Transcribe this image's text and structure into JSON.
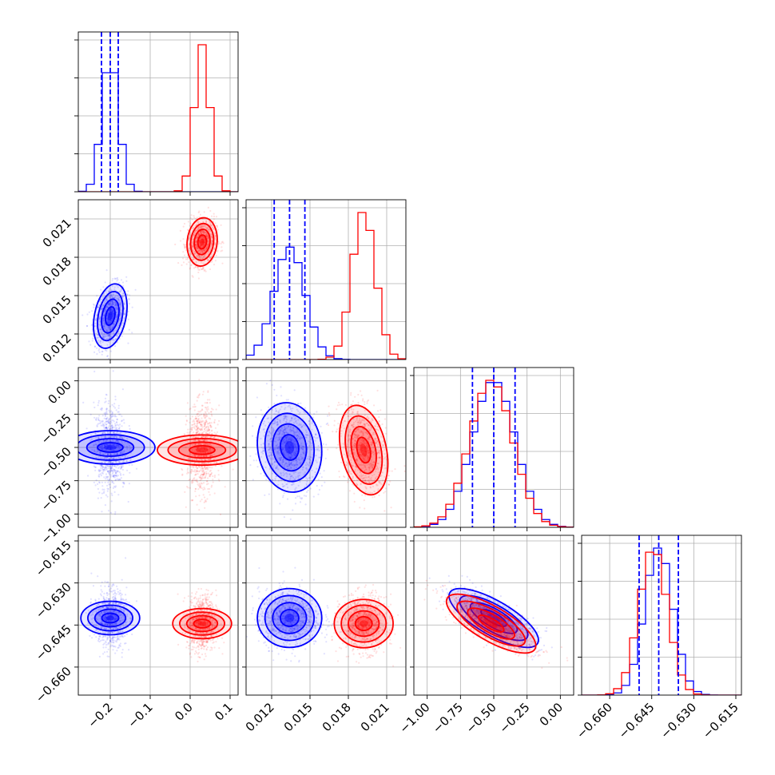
{
  "chart_data": {
    "type": "corner",
    "parameters": 4,
    "grid": true,
    "axis_ranges": [
      [
        -0.28,
        0.12
      ],
      [
        0.01,
        0.0225
      ],
      [
        -1.1,
        0.1
      ],
      [
        -0.67,
        -0.613
      ]
    ],
    "tick_labels": [
      [
        "-0.2",
        "-0.1",
        "0.0",
        "0.1"
      ],
      [
        "0.012",
        "0.015",
        "0.018",
        "0.021"
      ],
      [
        "-1.00",
        "-0.75",
        "-0.50",
        "-0.25",
        "0.00"
      ],
      [
        "-0.660",
        "-0.645",
        "-0.630",
        "-0.615"
      ]
    ],
    "tick_values": [
      [
        -0.2,
        -0.1,
        0.0,
        0.1
      ],
      [
        0.012,
        0.015,
        0.018,
        0.021
      ],
      [
        -1.0,
        -0.75,
        -0.5,
        -0.25,
        0.0
      ],
      [
        -0.66,
        -0.645,
        -0.63,
        -0.615
      ]
    ],
    "series": [
      {
        "color": "#0000ff",
        "mean": [
          -0.2,
          0.0134,
          -0.5,
          -0.6425
        ],
        "sd": [
          0.02,
          0.0012,
          0.16,
          0.005
        ],
        "quantiles": [
          [
            -0.222,
            -0.2,
            -0.18
          ],
          [
            0.0122,
            0.0134,
            0.0146
          ],
          [
            -0.66,
            -0.5,
            -0.34
          ],
          [
            -0.6495,
            -0.6425,
            -0.6355
          ]
        ]
      },
      {
        "color": "#ff0000",
        "mean": [
          0.03,
          0.0192,
          -0.52,
          -0.6445
        ],
        "sd": [
          0.018,
          0.0009,
          0.16,
          0.005
        ]
      }
    ],
    "pair_correlations": {
      "0-1": [
        0.3,
        0.1
      ],
      "0-2": [
        0.0,
        0.0
      ],
      "0-3": [
        0.0,
        0.0
      ],
      "1-2": [
        -0.1,
        -0.3
      ],
      "1-3": [
        0.0,
        0.0
      ],
      "2-3": [
        -0.75,
        -0.75
      ]
    },
    "histogram_tick_fractions": [
      0.0,
      0.25,
      0.5,
      0.75,
      1.0
    ]
  }
}
